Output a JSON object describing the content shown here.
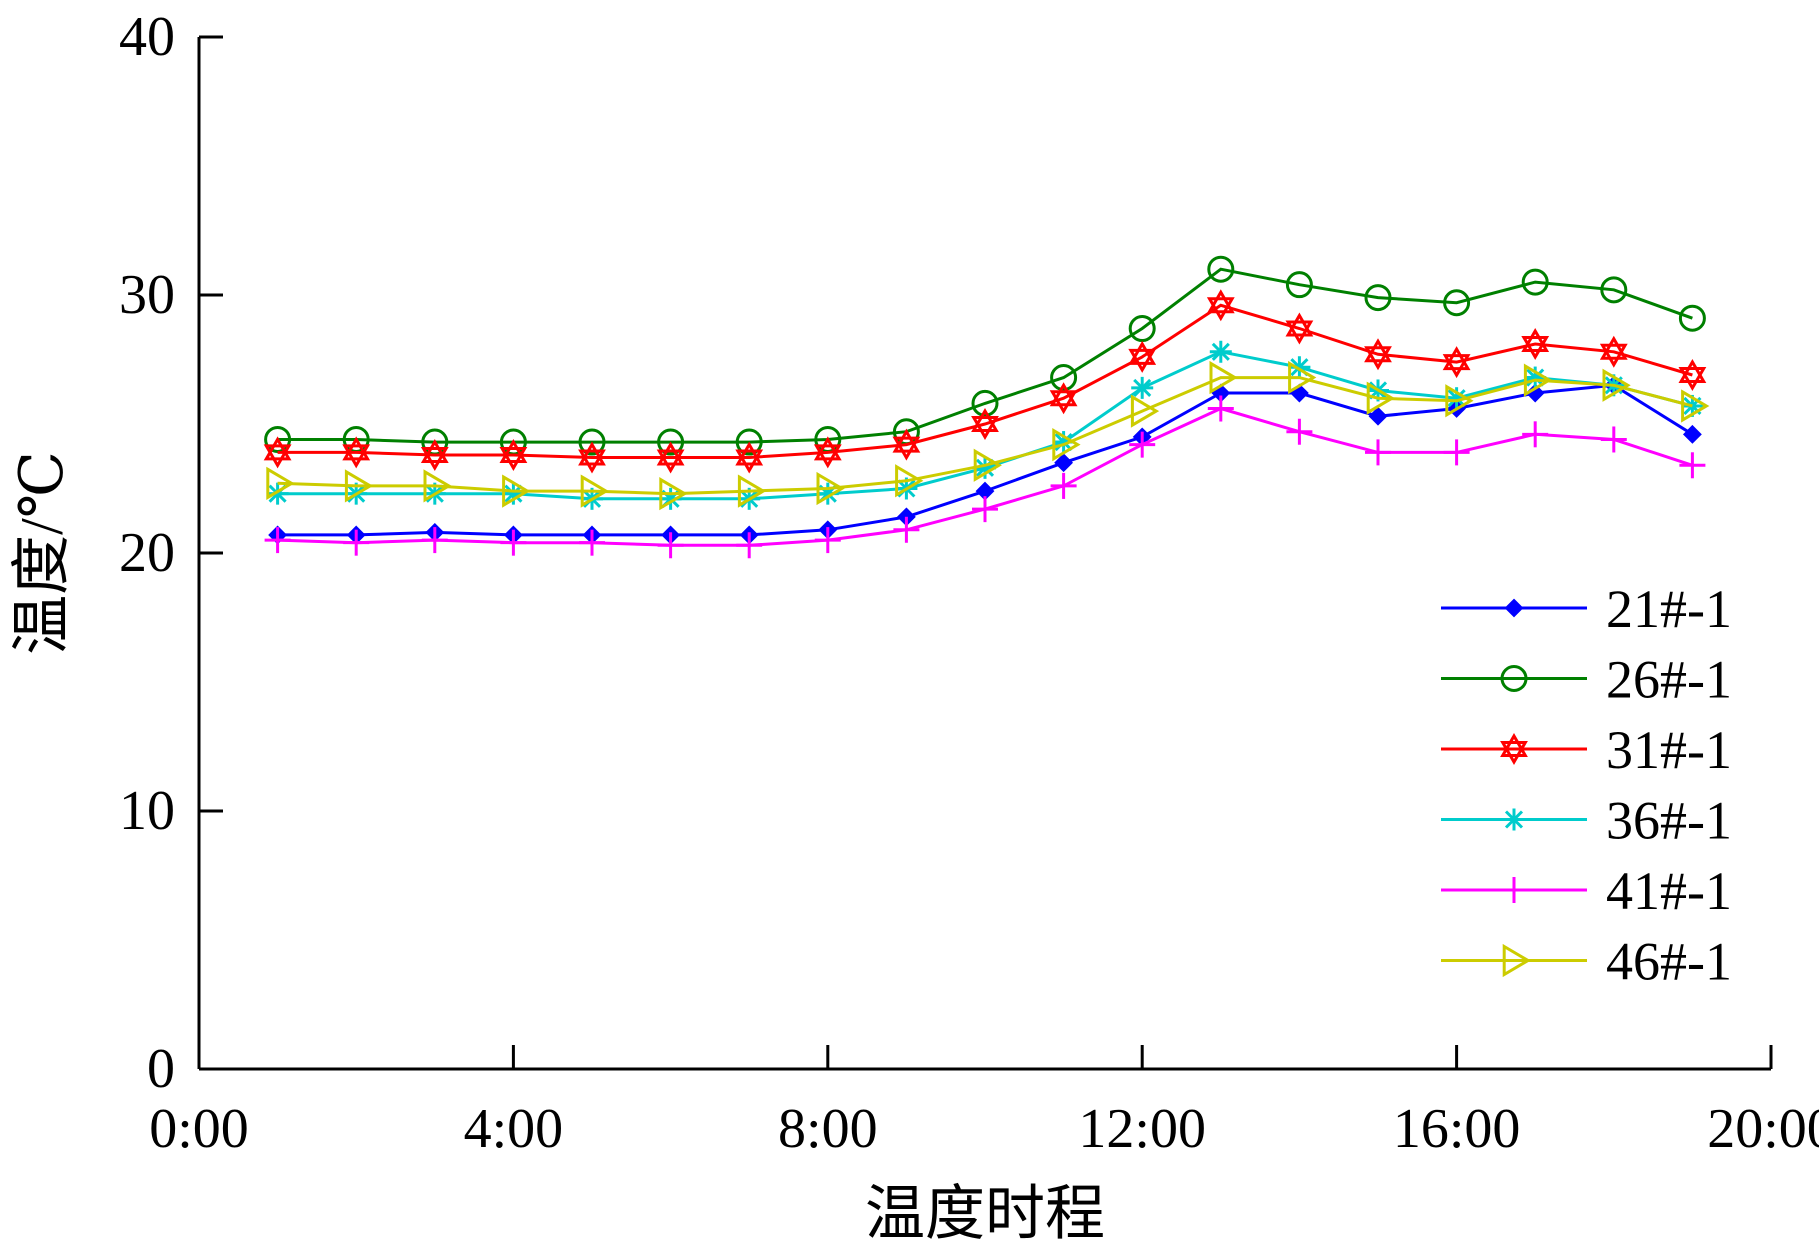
{
  "chart_data": {
    "type": "line",
    "title": "",
    "xlabel": "温度时程",
    "ylabel": "温度/℃",
    "xlim": [
      0,
      20
    ],
    "ylim": [
      0,
      40
    ],
    "xticks": [
      0,
      4,
      8,
      12,
      16,
      20
    ],
    "xtick_labels": [
      "0:00",
      "4:00",
      "8:00",
      "12:00",
      "16:00",
      "20:00"
    ],
    "yticks": [
      0,
      10,
      20,
      30,
      40
    ],
    "ytick_labels": [
      "0",
      "10",
      "20",
      "30",
      "40"
    ],
    "legend_position": "lower-right",
    "x": [
      1,
      2,
      3,
      4,
      5,
      6,
      7,
      8,
      9,
      10,
      11,
      12,
      13,
      14,
      15,
      16,
      17,
      18,
      19
    ],
    "series": [
      {
        "name": "21#-1",
        "color": "#0000ff",
        "marker": "diamond",
        "values": [
          20.7,
          20.7,
          20.8,
          20.7,
          20.7,
          20.7,
          20.7,
          20.9,
          21.4,
          22.4,
          23.5,
          24.5,
          26.2,
          26.2,
          25.3,
          25.6,
          26.2,
          26.5,
          24.6
        ]
      },
      {
        "name": "26#-1",
        "color": "#008000",
        "marker": "circle",
        "values": [
          24.4,
          24.4,
          24.3,
          24.3,
          24.3,
          24.3,
          24.3,
          24.4,
          24.7,
          25.8,
          26.8,
          28.7,
          31.0,
          30.4,
          29.9,
          29.7,
          30.5,
          30.2,
          29.1
        ]
      },
      {
        "name": "31#-1",
        "color": "#ff0000",
        "marker": "hexagram",
        "values": [
          23.9,
          23.9,
          23.8,
          23.8,
          23.7,
          23.7,
          23.7,
          23.9,
          24.2,
          25.0,
          26.0,
          27.6,
          29.6,
          28.7,
          27.7,
          27.4,
          28.1,
          27.8,
          26.9
        ]
      },
      {
        "name": "36#-1",
        "color": "#00cccc",
        "marker": "asterisk",
        "values": [
          22.3,
          22.3,
          22.3,
          22.3,
          22.1,
          22.1,
          22.1,
          22.3,
          22.5,
          23.3,
          24.3,
          26.4,
          27.8,
          27.2,
          26.3,
          26.0,
          26.8,
          26.5,
          25.7
        ]
      },
      {
        "name": "41#-1",
        "color": "#ff00ff",
        "marker": "plus",
        "values": [
          20.5,
          20.4,
          20.5,
          20.4,
          20.4,
          20.3,
          20.3,
          20.5,
          20.9,
          21.7,
          22.6,
          24.2,
          25.6,
          24.7,
          23.9,
          23.9,
          24.6,
          24.4,
          23.4
        ]
      },
      {
        "name": "46#-1",
        "color": "#cccc00",
        "marker": "triangle-right",
        "values": [
          22.7,
          22.6,
          22.6,
          22.4,
          22.4,
          22.3,
          22.4,
          22.5,
          22.8,
          23.4,
          24.2,
          25.5,
          26.8,
          26.8,
          26.0,
          25.9,
          26.7,
          26.5,
          25.7
        ]
      }
    ]
  }
}
